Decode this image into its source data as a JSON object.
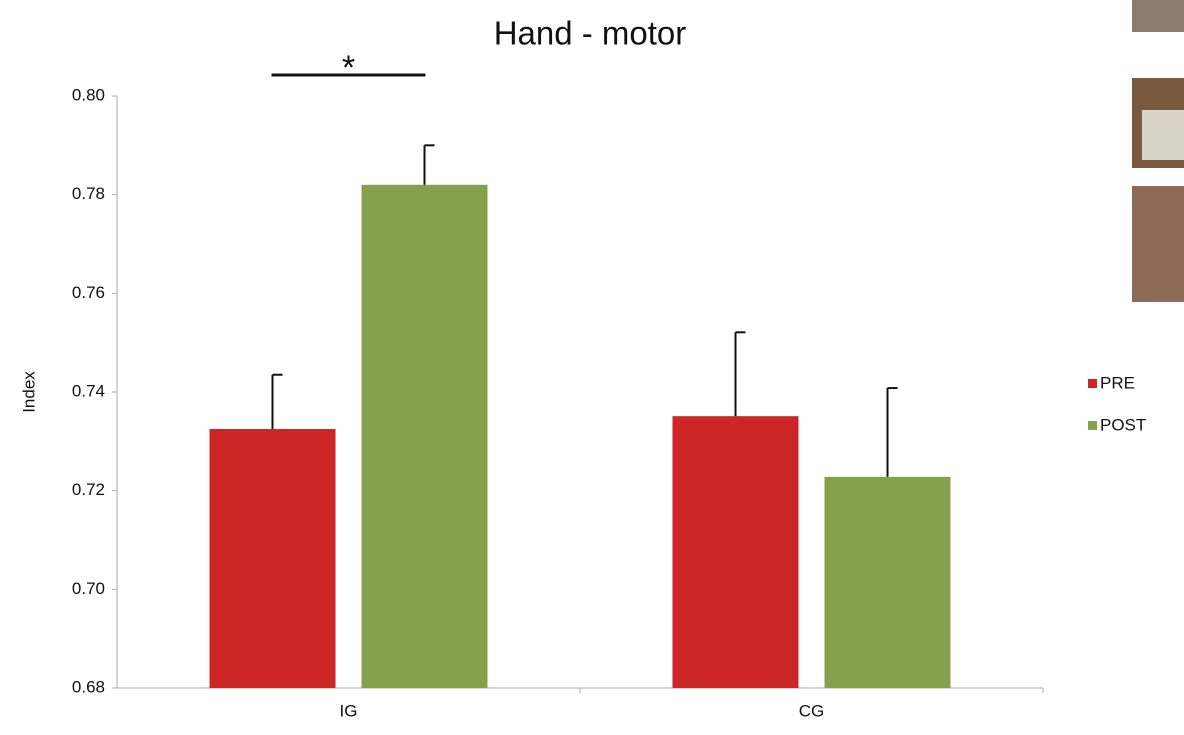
{
  "chart_data": {
    "type": "bar",
    "title": "Hand - motor",
    "y_label": "Index",
    "categories": [
      "IG",
      "CG"
    ],
    "series": [
      {
        "name": "PRE",
        "color": "#cc2626",
        "values": [
          0.7325,
          0.7351
        ],
        "errors": [
          0.011,
          0.017
        ]
      },
      {
        "name": "POST",
        "color": "#87a04a",
        "values": [
          0.782,
          0.7228
        ],
        "errors": [
          0.008,
          0.018
        ]
      }
    ],
    "ylim": [
      0.68,
      0.8
    ],
    "yticks": [
      0.68,
      {
        "value": 0.7,
        "label": "0.70"
      },
      0.72,
      0.74,
      0.76,
      0.78,
      {
        "value": 0.8,
        "label": "0.80"
      }
    ],
    "annotation": "*",
    "legend": "right"
  }
}
